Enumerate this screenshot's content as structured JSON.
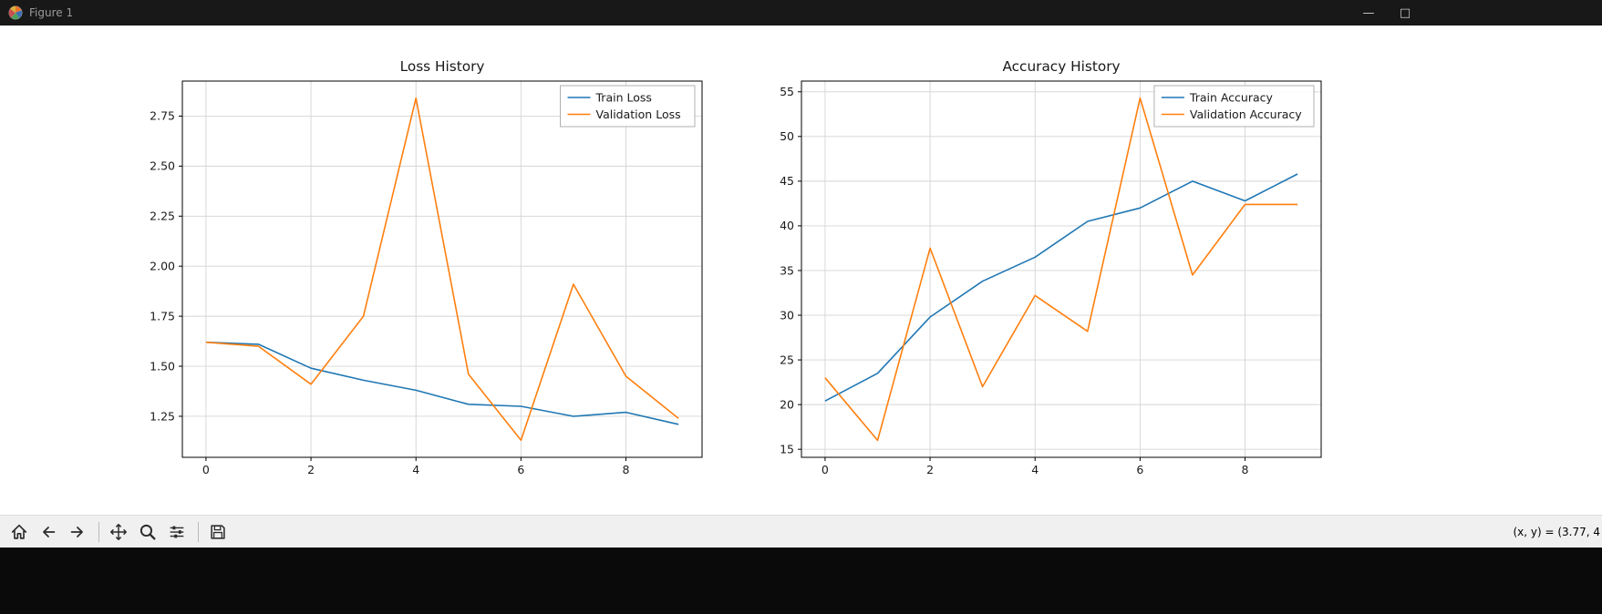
{
  "window": {
    "title": "Figure 1",
    "controls": {
      "minimize": "—",
      "maximize": "□"
    }
  },
  "toolbar": {
    "icons": [
      "home",
      "back",
      "forward",
      "pan",
      "zoom",
      "configure-subplots",
      "save"
    ]
  },
  "statusbar": {
    "coordinates": "(x, y) = (3.77, 4"
  },
  "colors": {
    "train": "#1f77b4",
    "validation": "#ff7f0e",
    "titlebar_bg": "#181818",
    "toolbar_bg": "#f0f0f0",
    "grid": "#d4d4d4"
  },
  "chart_data": [
    {
      "type": "line",
      "title": "Loss History",
      "x": [
        0,
        1,
        2,
        3,
        4,
        5,
        6,
        7,
        8,
        9
      ],
      "series": [
        {
          "name": "Train Loss",
          "color": "#1f77b4",
          "values": [
            1.62,
            1.61,
            1.49,
            1.43,
            1.38,
            1.31,
            1.3,
            1.25,
            1.27,
            1.21
          ]
        },
        {
          "name": "Validation Loss",
          "color": "#ff7f0e",
          "values": [
            1.62,
            1.6,
            1.41,
            1.75,
            2.84,
            1.46,
            1.13,
            1.91,
            1.45,
            1.24
          ]
        }
      ],
      "xlim": [
        -0.45,
        9.45
      ],
      "ylim": [
        1.045,
        2.925
      ],
      "xticks": {
        "values": [
          0,
          2,
          4,
          6,
          8
        ],
        "labels": [
          "0",
          "2",
          "4",
          "6",
          "8"
        ]
      },
      "yticks": {
        "values": [
          1.25,
          1.5,
          1.75,
          2.0,
          2.25,
          2.5,
          2.75
        ],
        "labels": [
          "1.25",
          "1.50",
          "1.75",
          "2.00",
          "2.25",
          "2.50",
          "2.75"
        ]
      },
      "grid": true,
      "legend_position": "upper right"
    },
    {
      "type": "line",
      "title": "Accuracy History",
      "x": [
        0,
        1,
        2,
        3,
        4,
        5,
        6,
        7,
        8,
        9
      ],
      "series": [
        {
          "name": "Train Accuracy",
          "color": "#1f77b4",
          "values": [
            20.4,
            23.5,
            29.8,
            33.8,
            36.5,
            40.5,
            42.0,
            45.0,
            42.8,
            45.8
          ]
        },
        {
          "name": "Validation Accuracy",
          "color": "#ff7f0e",
          "values": [
            23.0,
            16.0,
            37.5,
            22.0,
            32.2,
            28.2,
            54.3,
            34.5,
            42.4,
            42.4
          ]
        }
      ],
      "xlim": [
        -0.45,
        9.45
      ],
      "ylim": [
        14.1,
        56.2
      ],
      "xticks": {
        "values": [
          0,
          2,
          4,
          6,
          8
        ],
        "labels": [
          "0",
          "2",
          "4",
          "6",
          "8"
        ]
      },
      "yticks": {
        "values": [
          15,
          20,
          25,
          30,
          35,
          40,
          45,
          50,
          55
        ],
        "labels": [
          "15",
          "20",
          "25",
          "30",
          "35",
          "40",
          "45",
          "50",
          "55"
        ]
      },
      "grid": true,
      "legend_position": "upper right"
    }
  ]
}
